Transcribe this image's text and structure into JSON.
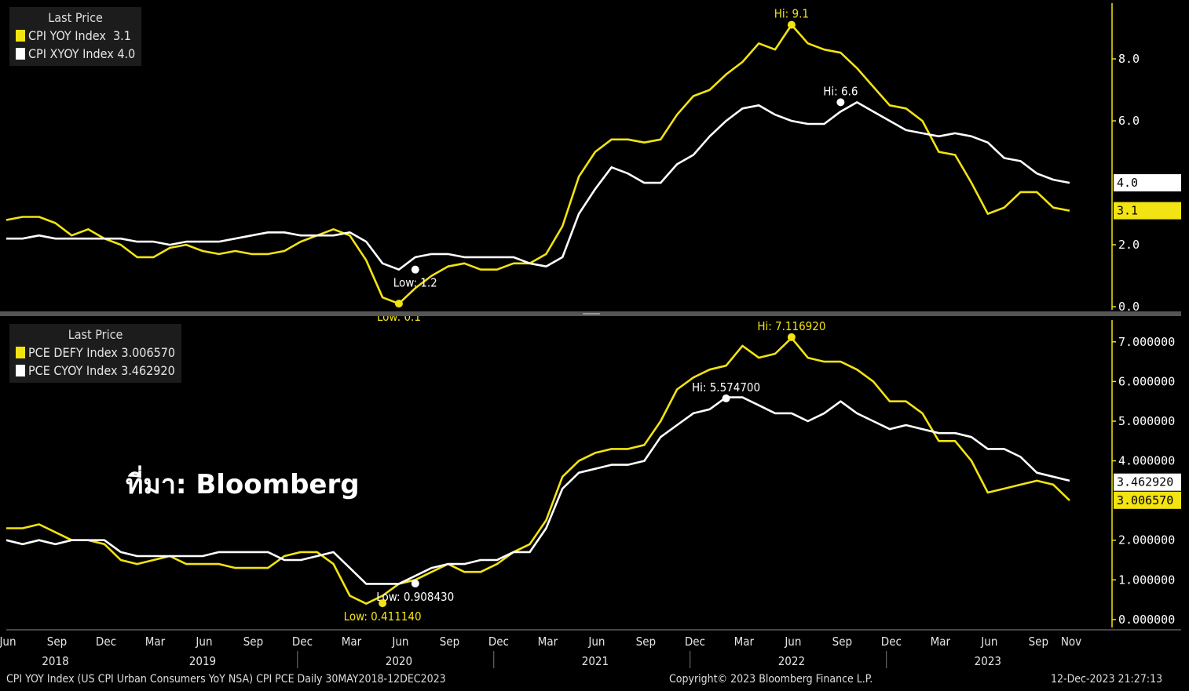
{
  "colors": {
    "yellow": "#f2e313",
    "white": "#ffffff",
    "background": "#000000",
    "axis": "#f2e313"
  },
  "chart_data": [
    {
      "type": "line",
      "legend": {
        "title": "Last Price",
        "entries": [
          {
            "label": "CPI YOY Index",
            "value": "3.1",
            "color": "#f2e313"
          },
          {
            "label": "CPI XYOY Index",
            "value": "4.0",
            "color": "#ffffff"
          }
        ]
      },
      "yticks": [
        "0.0",
        "2.0",
        "6.0",
        "8.0"
      ],
      "ylim": [
        -0.1,
        9.8
      ],
      "last_values": [
        {
          "text": "4.0",
          "value": 4.0,
          "color": "#ffffff"
        },
        {
          "text": "3.1",
          "value": 3.1,
          "color": "#f2e313"
        }
      ],
      "annotations": [
        {
          "text": "Hi: 9.1",
          "x": 48,
          "y": 9.1,
          "color": "#f2e313",
          "pos": "above"
        },
        {
          "text": "Hi: 6.6",
          "x": 51,
          "y": 6.6,
          "color": "#ffffff",
          "pos": "above"
        },
        {
          "text": "Low: 1.2",
          "x": 25,
          "y": 1.2,
          "color": "#ffffff",
          "pos": "below"
        },
        {
          "text": "Low: 0.1",
          "x": 24,
          "y": 0.1,
          "color": "#f2e313",
          "pos": "below"
        }
      ],
      "series": [
        {
          "name": "CPI YOY Index",
          "color": "#f2e313",
          "values": [
            2.8,
            2.9,
            2.9,
            2.7,
            2.3,
            2.5,
            2.2,
            2.0,
            1.6,
            1.6,
            1.9,
            2.0,
            1.8,
            1.7,
            1.8,
            1.7,
            1.7,
            1.8,
            2.1,
            2.3,
            2.5,
            2.3,
            1.5,
            0.3,
            0.1,
            0.6,
            1.0,
            1.3,
            1.4,
            1.2,
            1.2,
            1.4,
            1.4,
            1.7,
            2.6,
            4.2,
            5.0,
            5.4,
            5.4,
            5.3,
            5.4,
            6.2,
            6.8,
            7.0,
            7.5,
            7.9,
            8.5,
            8.3,
            9.1,
            8.5,
            8.3,
            8.2,
            7.7,
            7.1,
            6.5,
            6.4,
            6.0,
            5.0,
            4.9,
            4.0,
            3.0,
            3.2,
            3.7,
            3.7,
            3.2,
            3.1
          ]
        },
        {
          "name": "CPI XYOY Index",
          "color": "#ffffff",
          "values": [
            2.2,
            2.2,
            2.3,
            2.2,
            2.2,
            2.2,
            2.2,
            2.2,
            2.1,
            2.1,
            2.0,
            2.1,
            2.1,
            2.1,
            2.2,
            2.3,
            2.4,
            2.4,
            2.3,
            2.3,
            2.3,
            2.4,
            2.1,
            1.4,
            1.2,
            1.6,
            1.7,
            1.7,
            1.6,
            1.6,
            1.6,
            1.6,
            1.4,
            1.3,
            1.6,
            3.0,
            3.8,
            4.5,
            4.3,
            4.0,
            4.0,
            4.6,
            4.9,
            5.5,
            6.0,
            6.4,
            6.5,
            6.2,
            6.0,
            5.9,
            5.9,
            6.3,
            6.6,
            6.3,
            6.0,
            5.7,
            5.6,
            5.5,
            5.6,
            5.5,
            5.3,
            4.8,
            4.7,
            4.3,
            4.1,
            4.0
          ]
        }
      ]
    },
    {
      "type": "line",
      "legend": {
        "title": "Last Price",
        "entries": [
          {
            "label": "PCE DEFY Index",
            "value": "3.006570",
            "color": "#f2e313"
          },
          {
            "label": "PCE CYOY Index",
            "value": "3.462920",
            "color": "#ffffff"
          }
        ]
      },
      "yticks": [
        "0.000000",
        "1.000000",
        "2.000000",
        "4.000000",
        "5.000000",
        "6.000000",
        "7.000000"
      ],
      "ylim": [
        -0.2,
        7.55
      ],
      "last_values": [
        {
          "text": "3.462920",
          "value": 3.46292,
          "color": "#ffffff"
        },
        {
          "text": "3.006570",
          "value": 3.00657,
          "color": "#f2e313"
        }
      ],
      "annotations": [
        {
          "text": "Hi: 7.116920",
          "x": 48,
          "y": 7.11692,
          "color": "#f2e313",
          "pos": "above"
        },
        {
          "text": "Hi: 5.574700",
          "x": 44,
          "y": 5.5747,
          "color": "#ffffff",
          "pos": "above"
        },
        {
          "text": "Low: 0.908430",
          "x": 25,
          "y": 0.90843,
          "color": "#ffffff",
          "pos": "below"
        },
        {
          "text": "Low: 0.411140",
          "x": 23,
          "y": 0.41114,
          "color": "#f2e313",
          "pos": "below"
        }
      ],
      "series": [
        {
          "name": "PCE DEFY Index",
          "color": "#f2e313",
          "values": [
            2.3,
            2.3,
            2.4,
            2.2,
            2.0,
            2.0,
            1.9,
            1.5,
            1.4,
            1.5,
            1.6,
            1.4,
            1.4,
            1.4,
            1.3,
            1.3,
            1.3,
            1.6,
            1.7,
            1.7,
            1.4,
            0.6,
            0.4,
            0.6,
            0.9,
            1.0,
            1.2,
            1.4,
            1.2,
            1.2,
            1.4,
            1.7,
            1.9,
            2.5,
            3.6,
            4.0,
            4.2,
            4.3,
            4.3,
            4.4,
            5.0,
            5.8,
            6.1,
            6.3,
            6.4,
            6.9,
            6.6,
            6.7,
            7.1,
            6.6,
            6.5,
            6.5,
            6.3,
            6.0,
            5.5,
            5.5,
            5.2,
            4.5,
            4.5,
            4.0,
            3.2,
            3.3,
            3.4,
            3.5,
            3.4,
            3.0
          ]
        },
        {
          "name": "PCE CYOY Index",
          "color": "#ffffff",
          "values": [
            2.0,
            1.9,
            2.0,
            1.9,
            2.0,
            2.0,
            2.0,
            1.7,
            1.6,
            1.6,
            1.6,
            1.6,
            1.6,
            1.7,
            1.7,
            1.7,
            1.7,
            1.5,
            1.5,
            1.6,
            1.7,
            1.3,
            0.9,
            0.9,
            0.9,
            1.1,
            1.3,
            1.4,
            1.4,
            1.5,
            1.5,
            1.7,
            1.7,
            2.3,
            3.3,
            3.7,
            3.8,
            3.9,
            3.9,
            4.0,
            4.6,
            4.9,
            5.2,
            5.3,
            5.6,
            5.6,
            5.4,
            5.2,
            5.2,
            5.0,
            5.2,
            5.5,
            5.2,
            5.0,
            4.8,
            4.9,
            4.8,
            4.7,
            4.7,
            4.6,
            4.3,
            4.3,
            4.1,
            3.7,
            3.6,
            3.5
          ]
        }
      ]
    }
  ],
  "x_axis": {
    "months": [
      "Jun",
      "Sep",
      "Dec",
      "Mar",
      "Jun",
      "Sep",
      "Dec",
      "Mar",
      "Jun",
      "Sep",
      "Dec",
      "Mar",
      "Jun",
      "Sep",
      "Dec",
      "Mar",
      "Jun",
      "Sep",
      "Dec",
      "Mar",
      "Jun",
      "Sep",
      "Nov"
    ],
    "month_index": [
      0,
      3,
      6,
      9,
      12,
      15,
      18,
      21,
      24,
      27,
      30,
      33,
      36,
      39,
      42,
      45,
      48,
      51,
      54,
      57,
      60,
      63,
      65
    ],
    "years": [
      "2018",
      "2019",
      "2020",
      "2021",
      "2022",
      "2023"
    ],
    "year_index": [
      3,
      12,
      24,
      36,
      48,
      60
    ]
  },
  "source_label": "ที่มา: Bloomberg",
  "footer": {
    "left": "CPI YOY Index (US CPI Urban Consumers YoY NSA) CPI PCE  Daily 30MAY2018-12DEC2023",
    "center": "Copyright© 2023 Bloomberg Finance L.P.",
    "right": "12-Dec-2023 21:27:13"
  }
}
